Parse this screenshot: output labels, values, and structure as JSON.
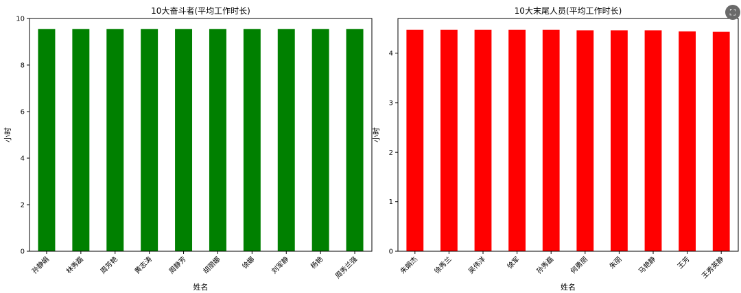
{
  "chart_data": [
    {
      "type": "bar",
      "title": "10大奋斗者(平均工作时长)",
      "xlabel": "姓名",
      "ylabel": "小时",
      "color": "#008000",
      "ylim": [
        0,
        10
      ],
      "yticks": [
        0,
        2,
        4,
        6,
        8,
        10
      ],
      "grid": false,
      "categories": [
        "孙静娟",
        "林秀磊",
        "周芳艳",
        "黄志涛",
        "周静芳",
        "胡丽娜",
        "徐娜",
        "刘军静",
        "杨艳",
        "周秀兰强"
      ],
      "values": [
        9.55,
        9.55,
        9.55,
        9.55,
        9.55,
        9.55,
        9.55,
        9.55,
        9.55,
        9.55
      ]
    },
    {
      "type": "bar",
      "title": "10大末尾人员(平均工作时长)",
      "xlabel": "姓名",
      "ylabel": "小时",
      "color": "#ff0000",
      "ylim": [
        0,
        4.7
      ],
      "yticks": [
        0,
        1,
        2,
        3,
        4
      ],
      "grid": false,
      "categories": [
        "朱娟杰",
        "徐秀兰",
        "吴伟洋",
        "徐军",
        "孙秀磊",
        "何勇丽",
        "朱丽",
        "马艳静",
        "王芳",
        "王秀英静"
      ],
      "values": [
        4.47,
        4.47,
        4.47,
        4.47,
        4.47,
        4.46,
        4.46,
        4.46,
        4.44,
        4.43
      ]
    }
  ],
  "overlay": {
    "icon": "screenshot-icon",
    "glyph": "⛶"
  }
}
